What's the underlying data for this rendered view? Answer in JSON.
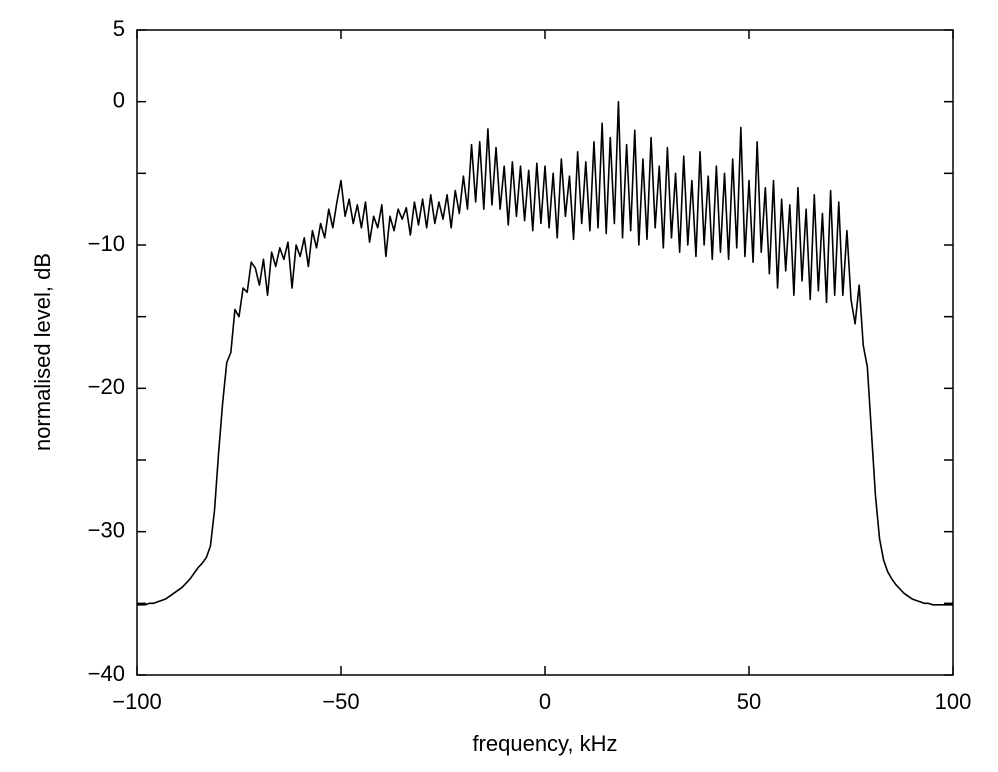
{
  "chart_data": {
    "type": "line",
    "xlabel": "frequency, kHz",
    "ylabel": "normalised level, dB",
    "color": "#000000",
    "xlim": [
      -100,
      100
    ],
    "ylim": [
      -40,
      5
    ],
    "xticks": [
      {
        "value": -100,
        "label": "−100"
      },
      {
        "value": -50,
        "label": "−50"
      },
      0,
      50,
      100
    ],
    "yticks": [
      {
        "value": -40,
        "label": "−40"
      },
      {
        "value": -30,
        "label": "−30"
      },
      {
        "value": -20,
        "label": "−20"
      },
      {
        "value": -10,
        "label": "−10"
      },
      0,
      5
    ],
    "yminorticks": [
      -35,
      -25,
      -15,
      -5
    ],
    "grid": false,
    "x": [
      -100,
      -99,
      -98,
      -97,
      -96,
      -95,
      -94,
      -93,
      -92,
      -91,
      -90,
      -89,
      -88,
      -87,
      -86,
      -85,
      -84,
      -83,
      -82,
      -81,
      -80,
      -79,
      -78,
      -77,
      -76,
      -75,
      -74,
      -73,
      -72,
      -71,
      -70,
      -69,
      -68,
      -67,
      -66,
      -65,
      -64,
      -63,
      -62,
      -61,
      -60,
      -59,
      -58,
      -57,
      -56,
      -55,
      -54,
      -53,
      -52,
      -51,
      -50,
      -49,
      -48,
      -47,
      -46,
      -45,
      -44,
      -43,
      -42,
      -41,
      -40,
      -39,
      -38,
      -37,
      -36,
      -35,
      -34,
      -33,
      -32,
      -31,
      -30,
      -29,
      -28,
      -27,
      -26,
      -25,
      -24,
      -23,
      -22,
      -21,
      -20,
      -19,
      -18,
      -17,
      -16,
      -15,
      -14,
      -13,
      -12,
      -11,
      -10,
      -9,
      -8,
      -7,
      -6,
      -5,
      -4,
      -3,
      -2,
      -1,
      0,
      1,
      2,
      3,
      4,
      5,
      6,
      7,
      8,
      9,
      10,
      11,
      12,
      13,
      14,
      15,
      16,
      17,
      18,
      19,
      20,
      21,
      22,
      23,
      24,
      25,
      26,
      27,
      28,
      29,
      30,
      31,
      32,
      33,
      34,
      35,
      36,
      37,
      38,
      39,
      40,
      41,
      42,
      43,
      44,
      45,
      46,
      47,
      48,
      49,
      50,
      51,
      52,
      53,
      54,
      55,
      56,
      57,
      58,
      59,
      60,
      61,
      62,
      63,
      64,
      65,
      66,
      67,
      68,
      69,
      70,
      71,
      72,
      73,
      74,
      75,
      76,
      77,
      78,
      79,
      80,
      81,
      82,
      83,
      84,
      85,
      86,
      87,
      88,
      89,
      90,
      91,
      92,
      93,
      94,
      95,
      96,
      97,
      98,
      99,
      100
    ],
    "values": [
      -35.1,
      -35.1,
      -35.1,
      -35.0,
      -35.0,
      -34.9,
      -34.8,
      -34.7,
      -34.5,
      -34.3,
      -34.1,
      -33.9,
      -33.6,
      -33.3,
      -32.9,
      -32.5,
      -32.2,
      -31.8,
      -31.0,
      -28.5,
      -24.5,
      -21.0,
      -18.2,
      -17.5,
      -14.5,
      -15.0,
      -13.0,
      -13.3,
      -11.2,
      -11.6,
      -12.8,
      -11.0,
      -13.5,
      -10.5,
      -11.5,
      -10.2,
      -11.0,
      -9.8,
      -13.0,
      -10.0,
      -10.8,
      -9.5,
      -11.5,
      -9.0,
      -10.2,
      -8.5,
      -9.5,
      -7.5,
      -8.8,
      -7.0,
      -5.5,
      -8.0,
      -6.8,
      -8.5,
      -7.2,
      -8.8,
      -7.0,
      -9.8,
      -8.0,
      -8.8,
      -7.2,
      -10.8,
      -8.0,
      -9.0,
      -7.5,
      -8.2,
      -7.4,
      -9.3,
      -7.0,
      -8.6,
      -6.8,
      -8.8,
      -6.5,
      -8.5,
      -7.0,
      -8.2,
      -6.5,
      -8.8,
      -6.2,
      -7.8,
      -5.2,
      -7.5,
      -3.0,
      -7.0,
      -2.8,
      -7.5,
      -1.9,
      -7.2,
      -3.2,
      -7.5,
      -4.5,
      -8.6,
      -4.2,
      -8.0,
      -4.5,
      -8.3,
      -4.8,
      -9.0,
      -4.3,
      -8.5,
      -4.5,
      -8.8,
      -5.0,
      -9.5,
      -4.0,
      -8.0,
      -5.2,
      -9.6,
      -3.5,
      -8.5,
      -4.2,
      -9.0,
      -2.8,
      -8.8,
      -1.5,
      -9.2,
      -2.5,
      -8.5,
      0.0,
      -9.5,
      -3.0,
      -9.0,
      -2.0,
      -10.0,
      -4.0,
      -9.6,
      -2.5,
      -8.8,
      -4.5,
      -10.2,
      -3.2,
      -9.5,
      -5.0,
      -10.5,
      -3.8,
      -10.0,
      -5.5,
      -10.8,
      -3.5,
      -10.0,
      -5.2,
      -11.0,
      -4.5,
      -10.5,
      -5.0,
      -11.0,
      -4.0,
      -10.2,
      -1.8,
      -10.8,
      -5.5,
      -11.2,
      -2.8,
      -10.5,
      -6.0,
      -12.0,
      -5.5,
      -13.0,
      -6.8,
      -11.8,
      -7.2,
      -13.5,
      -6.0,
      -12.5,
      -7.5,
      -13.8,
      -6.5,
      -13.2,
      -7.8,
      -14.0,
      -6.2,
      -13.5,
      -7.0,
      -13.5,
      -9.0,
      -13.8,
      -15.5,
      -12.8,
      -17.0,
      -18.5,
      -23.0,
      -27.5,
      -30.5,
      -32.0,
      -32.8,
      -33.3,
      -33.7,
      -34.0,
      -34.3,
      -34.5,
      -34.7,
      -34.8,
      -34.9,
      -35.0,
      -35.0,
      -35.1,
      -35.1,
      -35.1,
      -35.1,
      -35.1,
      -35.1
    ]
  }
}
